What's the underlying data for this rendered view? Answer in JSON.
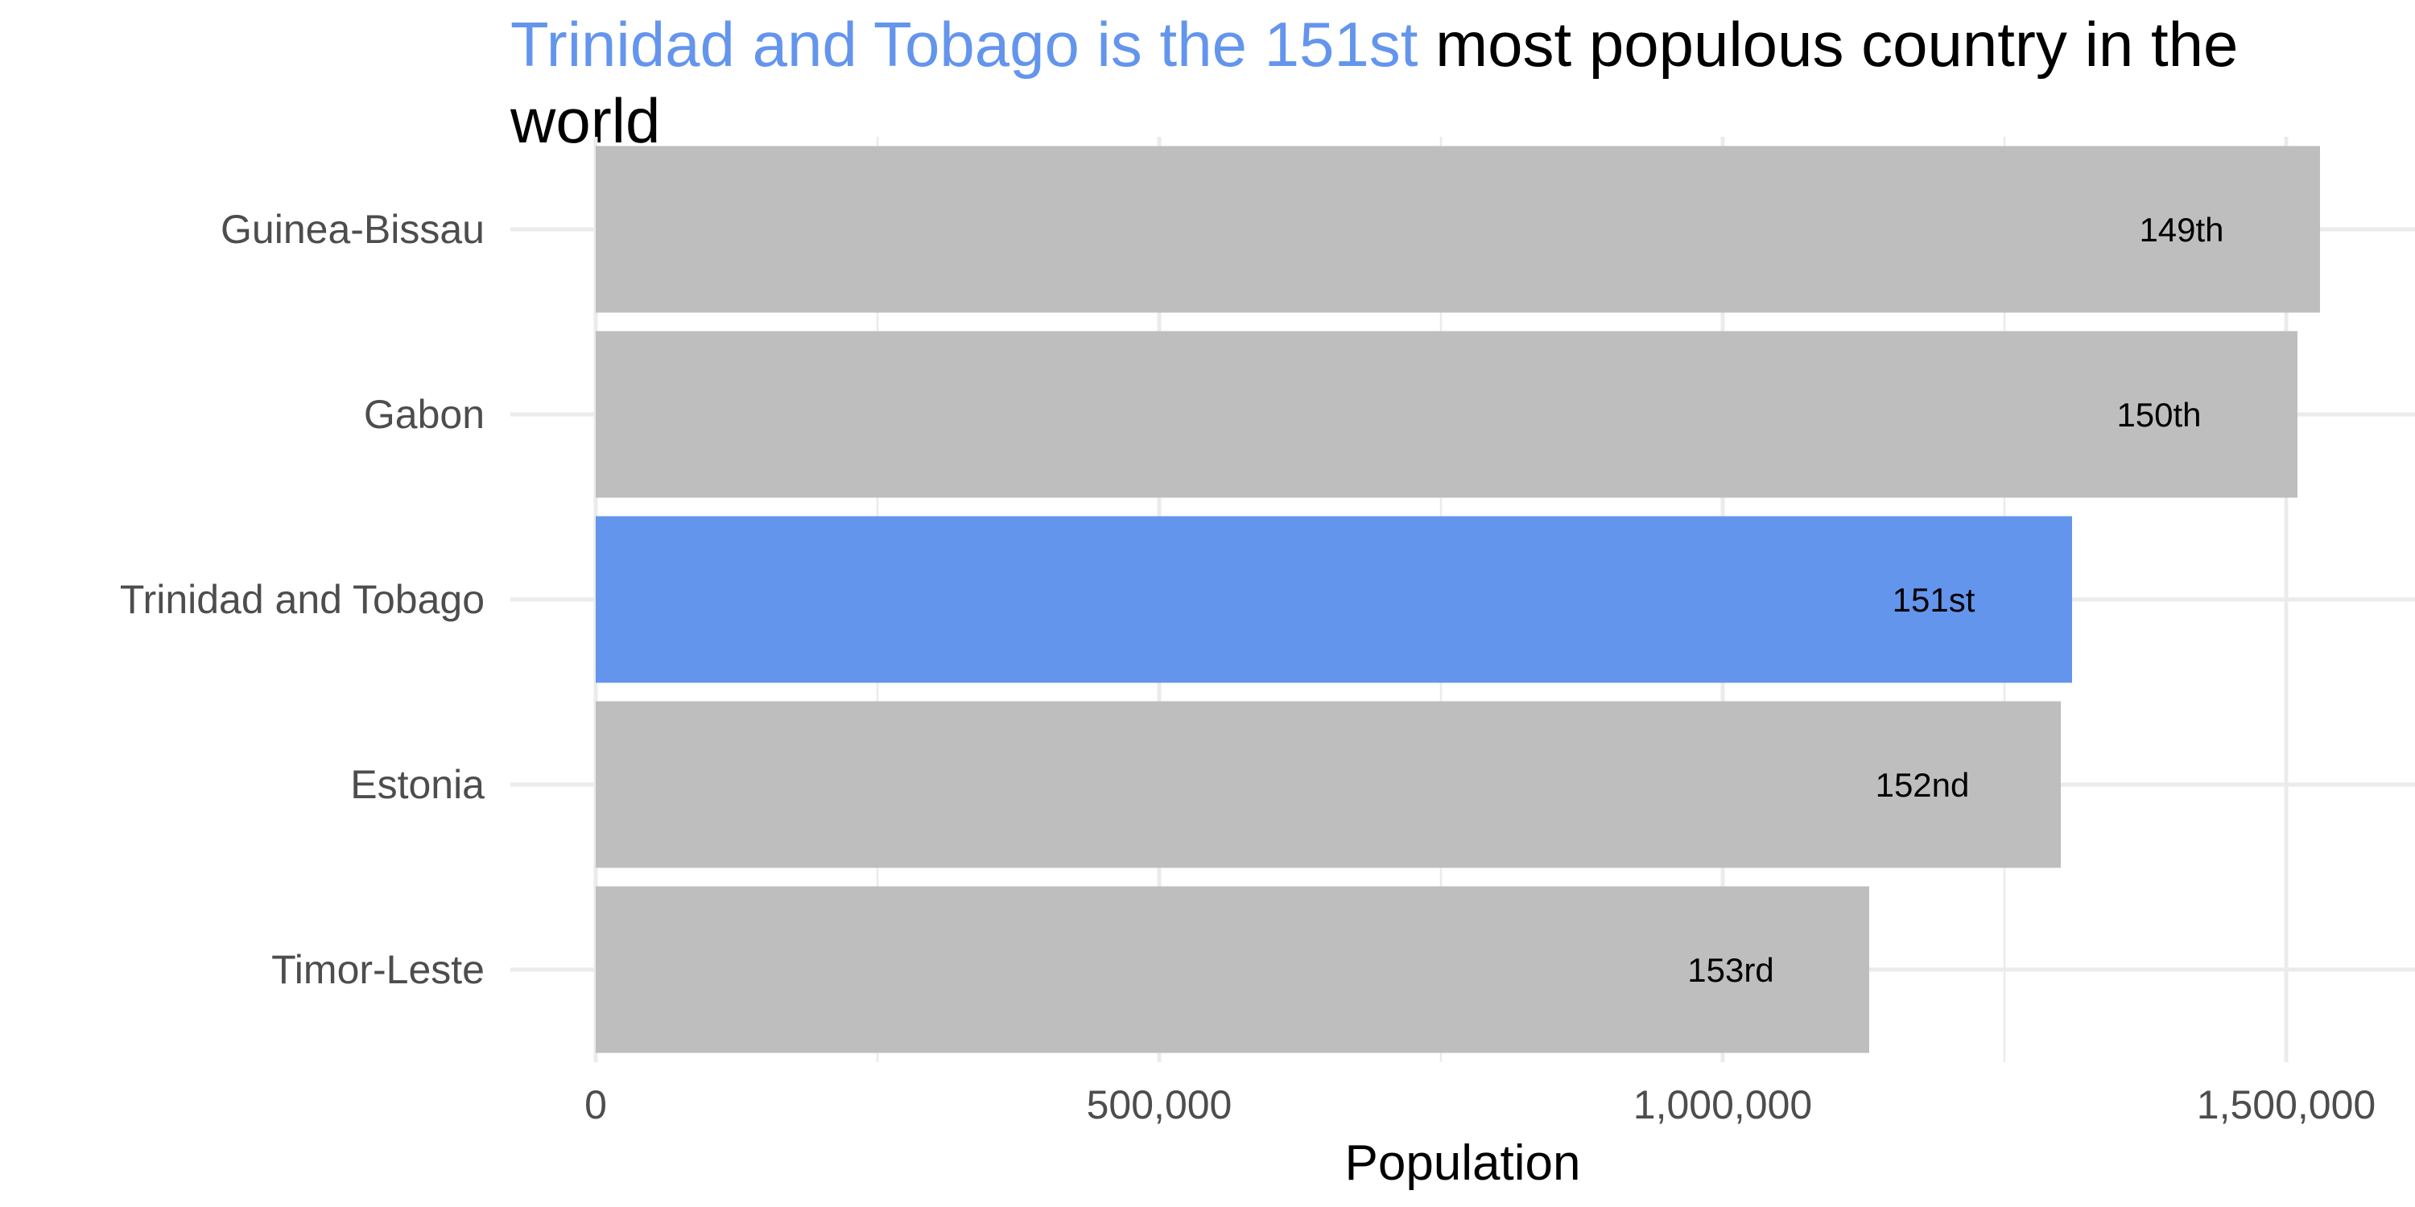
{
  "chart_data": {
    "type": "bar",
    "orientation": "horizontal",
    "title": {
      "highlight": "Trinidad and Tobago is the 151st",
      "rest_line1": " most populous country in the",
      "rest_line2": "world"
    },
    "xlabel": "Population",
    "ylabel": "",
    "xlim": [
      0,
      1600000
    ],
    "x_ticks": [
      0,
      500000,
      1000000,
      1500000
    ],
    "x_tick_labels": [
      "0",
      "500,000",
      "1,000,000",
      "1,500,000"
    ],
    "grid": true,
    "legend": "none",
    "highlight_color": "#6495ED",
    "bar_color": "#BEBEBE",
    "categories": [
      "Guinea-Bissau",
      "Gabon",
      "Trinidad and Tobago",
      "Estonia",
      "Timor-Leste"
    ],
    "values": [
      1530000,
      1510000,
      1310000,
      1300000,
      1130000
    ],
    "rank_labels": [
      "149th",
      "150th",
      "151st",
      "152nd",
      "153rd"
    ],
    "highlighted": [
      "Trinidad and Tobago"
    ]
  }
}
